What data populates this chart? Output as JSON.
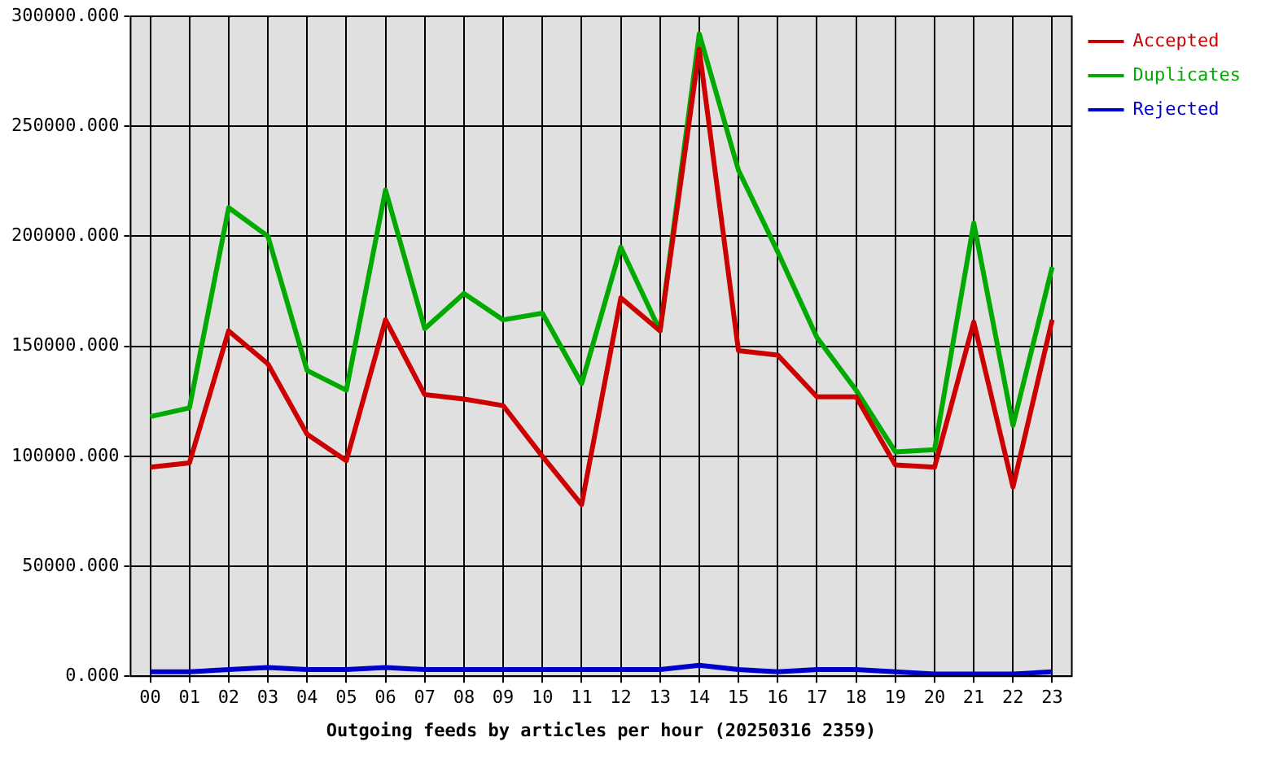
{
  "chart_data": {
    "type": "line",
    "xlabel": "Outgoing feeds by articles per hour (20250316 2359)",
    "categories": [
      "00",
      "01",
      "02",
      "03",
      "04",
      "05",
      "06",
      "07",
      "08",
      "09",
      "10",
      "11",
      "12",
      "13",
      "14",
      "15",
      "16",
      "17",
      "18",
      "19",
      "20",
      "21",
      "22",
      "23"
    ],
    "series": [
      {
        "name": "Accepted",
        "color": "#cc0000",
        "values": [
          95000,
          97000,
          157000,
          142000,
          110000,
          98000,
          162000,
          128000,
          126000,
          123000,
          100000,
          78000,
          172000,
          157000,
          285000,
          148000,
          146000,
          127000,
          127000,
          96000,
          95000,
          161000,
          86000,
          162000
        ]
      },
      {
        "name": "Duplicates",
        "color": "#00aa00",
        "values": [
          118000,
          122000,
          213000,
          200000,
          139000,
          130000,
          221000,
          158000,
          174000,
          162000,
          165000,
          133000,
          195000,
          157000,
          292000,
          230000,
          193000,
          154000,
          130000,
          102000,
          103000,
          206000,
          114000,
          186000
        ]
      },
      {
        "name": "Rejected",
        "color": "#0000cc",
        "values": [
          2000,
          2000,
          3000,
          4000,
          3000,
          3000,
          4000,
          3000,
          3000,
          3000,
          3000,
          3000,
          3000,
          3000,
          5000,
          3000,
          2000,
          3000,
          3000,
          2000,
          1000,
          1000,
          1000,
          2000
        ]
      }
    ],
    "ylim": [
      0,
      300000
    ],
    "yticks": [
      {
        "value": 0,
        "label": "0.000"
      },
      {
        "value": 50000,
        "label": "50000.000"
      },
      {
        "value": 100000,
        "label": "100000.000"
      },
      {
        "value": 150000,
        "label": "150000.000"
      },
      {
        "value": 200000,
        "label": "200000.000"
      },
      {
        "value": 250000,
        "label": "250000.000"
      },
      {
        "value": 300000,
        "label": "300000.000"
      }
    ],
    "grid": true,
    "legend": "top right",
    "line_style": "solid"
  }
}
